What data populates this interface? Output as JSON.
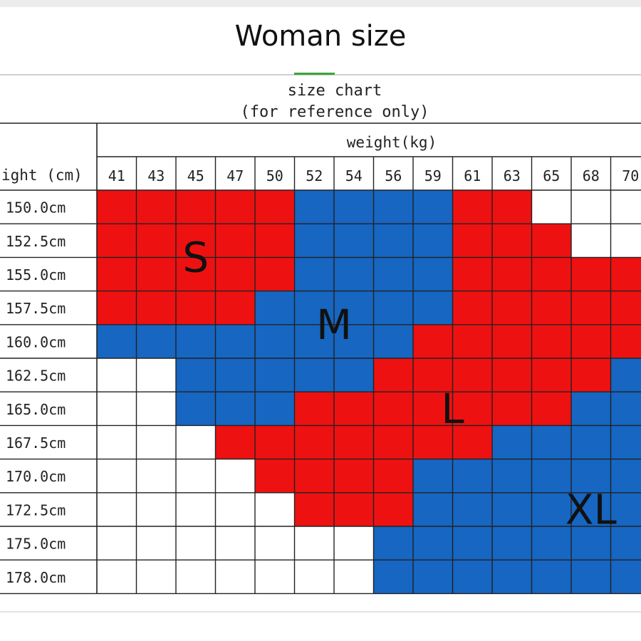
{
  "page": {
    "title": "Woman size"
  },
  "chart_data": {
    "type": "heatmap",
    "title": "size chart",
    "subtitle": "(for reference only)",
    "xlabel": "weight(kg)",
    "ylabel": "ight (cm)",
    "x": [
      41,
      43,
      45,
      47,
      50,
      52,
      54,
      56,
      59,
      61,
      63,
      65,
      68,
      70
    ],
    "y": [
      "150.0cm",
      "152.5cm",
      "155.0cm",
      "157.5cm",
      "160.0cm",
      "162.5cm",
      "165.0cm",
      "167.5cm",
      "170.0cm",
      "172.5cm",
      "175.0cm",
      "178.0cm"
    ],
    "sizes": [
      "S",
      "M",
      "L",
      "XL"
    ],
    "colors": {
      "S": "#ee1111",
      "M": "#1666c2",
      "L": "#ee1111",
      "XL": "#1666c2",
      "empty": "#ffffff",
      "grid": "#222222"
    },
    "grid": [
      [
        "S",
        "S",
        "S",
        "S",
        "S",
        "M",
        "M",
        "M",
        "M",
        "L",
        "L",
        "",
        "",
        ""
      ],
      [
        "S",
        "S",
        "S",
        "S",
        "S",
        "M",
        "M",
        "M",
        "M",
        "L",
        "L",
        "L",
        "",
        ""
      ],
      [
        "S",
        "S",
        "S",
        "S",
        "S",
        "M",
        "M",
        "M",
        "M",
        "L",
        "L",
        "L",
        "L",
        "L"
      ],
      [
        "S",
        "S",
        "S",
        "S",
        "M",
        "M",
        "M",
        "M",
        "M",
        "L",
        "L",
        "L",
        "L",
        "L"
      ],
      [
        "M",
        "M",
        "M",
        "M",
        "M",
        "M",
        "M",
        "M",
        "L",
        "L",
        "L",
        "L",
        "L",
        "L"
      ],
      [
        "",
        "",
        "M",
        "M",
        "M",
        "M",
        "M",
        "L",
        "L",
        "L",
        "L",
        "L",
        "L",
        "XL"
      ],
      [
        "",
        "",
        "M",
        "M",
        "M",
        "L",
        "L",
        "L",
        "L",
        "L",
        "L",
        "L",
        "XL",
        "XL"
      ],
      [
        "",
        "",
        "",
        "L",
        "L",
        "L",
        "L",
        "L",
        "L",
        "L",
        "XL",
        "XL",
        "XL",
        "XL"
      ],
      [
        "",
        "",
        "",
        "",
        "L",
        "L",
        "L",
        "L",
        "XL",
        "XL",
        "XL",
        "XL",
        "XL",
        "XL"
      ],
      [
        "",
        "",
        "",
        "",
        "",
        "L",
        "L",
        "L",
        "XL",
        "XL",
        "XL",
        "XL",
        "XL",
        "XL"
      ],
      [
        "",
        "",
        "",
        "",
        "",
        "",
        "",
        "XL",
        "XL",
        "XL",
        "XL",
        "XL",
        "XL",
        "XL"
      ],
      [
        "",
        "",
        "",
        "",
        "",
        "",
        "",
        "XL",
        "XL",
        "XL",
        "XL",
        "XL",
        "XL",
        "XL"
      ]
    ],
    "zone_labels": [
      {
        "text": "S",
        "row": 1.5,
        "col": 2.0
      },
      {
        "text": "M",
        "row": 3.5,
        "col": 5.5
      },
      {
        "text": "L",
        "row": 6.0,
        "col": 8.5
      },
      {
        "text": "XL",
        "row": 9.0,
        "col": 12.5
      }
    ]
  }
}
